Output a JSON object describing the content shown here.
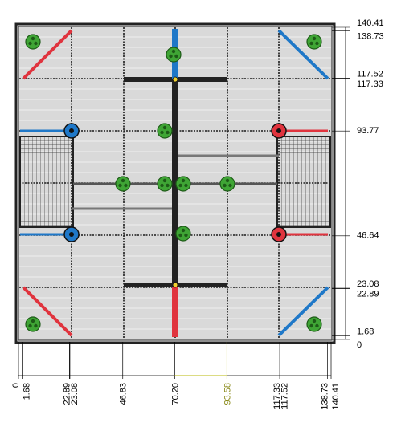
{
  "drawing": {
    "field_units_max": 140.41,
    "right_dimensions": [
      {
        "label": "140.41",
        "value": 140.41
      },
      {
        "label": "138.73",
        "value": 138.73
      },
      {
        "label": "117.52",
        "value": 117.52
      },
      {
        "label": "117.33",
        "value": 117.33
      },
      {
        "label": "93.77",
        "value": 93.77
      },
      {
        "label": "46.64",
        "value": 46.64
      },
      {
        "label": "23.08",
        "value": 23.08
      },
      {
        "label": "22.89",
        "value": 22.89
      },
      {
        "label": "1.68",
        "value": 1.68
      },
      {
        "label": "0",
        "value": 0
      }
    ],
    "bottom_dimensions": [
      {
        "label": "0",
        "value": 0
      },
      {
        "label": "1.68",
        "value": 1.68
      },
      {
        "label": "22.89",
        "value": 22.89
      },
      {
        "label": "23.08",
        "value": 23.08
      },
      {
        "label": "46.83",
        "value": 46.83
      },
      {
        "label": "70.20",
        "value": 70.2
      },
      {
        "label": "93.58",
        "value": 93.58,
        "highlight": true
      },
      {
        "label": "117.33",
        "value": 117.33
      },
      {
        "label": "117.52",
        "value": 117.52
      },
      {
        "label": "138.73",
        "value": 138.73
      },
      {
        "label": "140.41",
        "value": 140.41
      }
    ],
    "colors": {
      "field": "#d9d9d9",
      "tile_line": "#f2f2f2",
      "red": "#e0343e",
      "blue": "#1f78c8",
      "green": "#3fa535",
      "dark": "#222222",
      "highlight": "#c8c83a"
    }
  }
}
